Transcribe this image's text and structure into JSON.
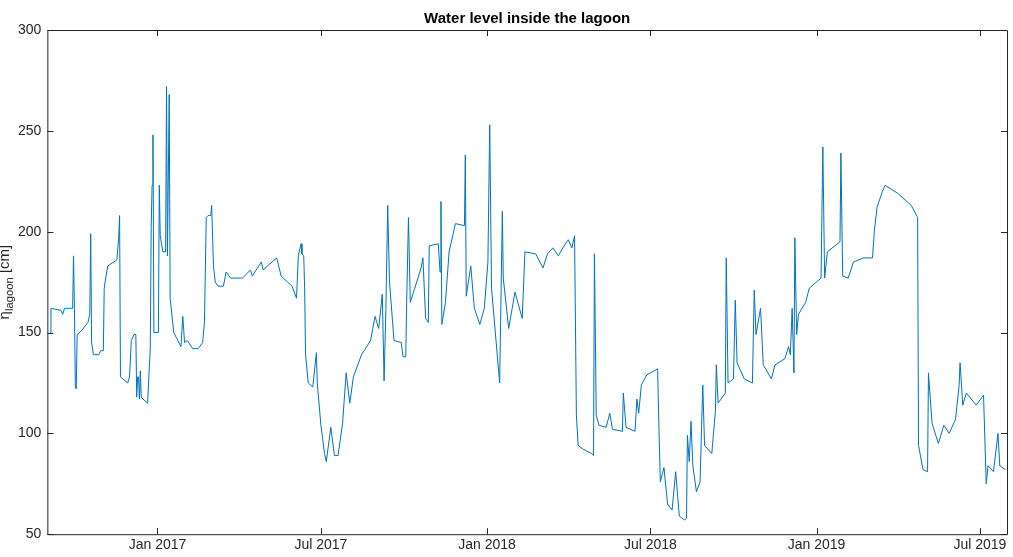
{
  "chart_data": {
    "type": "line",
    "title": "Water level inside the lagoon",
    "ylabel": "η$_{lagoon}$ [cm]",
    "xlim": [
      "2016-09-01",
      "2019-07-31"
    ],
    "xticks": [
      {
        "value": "2017-01-01",
        "label": "Jan 2017"
      },
      {
        "value": "2017-07-01",
        "label": "Jul 2017"
      },
      {
        "value": "2018-01-01",
        "label": "Jan 2018"
      },
      {
        "value": "2018-07-01",
        "label": "Jul 2018"
      },
      {
        "value": "2019-01-01",
        "label": "Jan 2019"
      },
      {
        "value": "2019-07-01",
        "label": "Jul 2019"
      }
    ],
    "ylim": [
      50,
      300
    ],
    "yticks": [
      50,
      100,
      150,
      200,
      250,
      300
    ],
    "grid": false,
    "legend": false,
    "marker": "none",
    "line_style": "solid",
    "x": [
      "2016-09-04",
      "2016-09-05",
      "2016-09-16",
      "2016-09-18",
      "2016-09-20",
      "2016-09-29",
      "2016-09-30",
      "2016-10-01",
      "2016-10-02",
      "2016-10-03",
      "2016-10-04",
      "2016-10-09",
      "2016-10-16",
      "2016-10-18",
      "2016-10-19",
      "2016-10-20",
      "2016-10-22",
      "2016-10-28",
      "2016-10-30",
      "2016-11-02",
      "2016-11-03",
      "2016-11-05",
      "2016-11-07",
      "2016-11-17",
      "2016-11-19",
      "2016-11-20",
      "2016-11-21",
      "2016-11-29",
      "2016-12-01",
      "2016-12-03",
      "2016-12-06",
      "2016-12-08",
      "2016-12-09",
      "2016-12-10",
      "2016-12-11",
      "2016-12-12",
      "2016-12-13",
      "2016-12-14",
      "2016-12-16",
      "2016-12-21",
      "2016-12-24",
      "2016-12-25",
      "2016-12-26",
      "2016-12-27",
      "2016-12-28",
      "2017-01-02",
      "2017-01-03",
      "2017-01-04",
      "2017-01-07",
      "2017-01-10",
      "2017-01-11",
      "2017-01-12",
      "2017-01-14",
      "2017-01-15",
      "2017-01-19",
      "2017-01-27",
      "2017-01-29",
      "2017-01-31",
      "2017-02-03",
      "2017-02-09",
      "2017-02-15",
      "2017-02-20",
      "2017-02-22",
      "2017-02-24",
      "2017-02-26",
      "2017-03-01",
      "2017-03-02",
      "2017-03-04",
      "2017-03-06",
      "2017-03-09",
      "2017-03-15",
      "2017-03-18",
      "2017-03-23",
      "2017-04-05",
      "2017-04-14",
      "2017-04-16",
      "2017-04-26",
      "2017-04-28",
      "2017-05-13",
      "2017-05-18",
      "2017-05-30",
      "2017-06-04",
      "2017-06-06",
      "2017-06-09",
      "2017-06-10",
      "2017-06-12",
      "2017-06-13",
      "2017-06-14",
      "2017-06-17",
      "2017-06-22",
      "2017-06-26",
      "2017-06-27",
      "2017-07-01",
      "2017-07-05",
      "2017-07-07",
      "2017-07-12",
      "2017-07-16",
      "2017-07-20",
      "2017-07-25",
      "2017-07-29",
      "2017-08-02",
      "2017-08-06",
      "2017-08-15",
      "2017-08-25",
      "2017-08-30",
      "2017-09-03",
      "2017-09-07",
      "2017-09-09",
      "2017-09-11",
      "2017-09-13",
      "2017-09-15",
      "2017-09-20",
      "2017-09-28",
      "2017-09-30",
      "2017-10-03",
      "2017-10-04",
      "2017-10-06",
      "2017-10-08",
      "2017-10-13",
      "2017-10-20",
      "2017-10-22",
      "2017-10-25",
      "2017-10-28",
      "2017-10-29",
      "2017-11-08",
      "2017-11-10",
      "2017-11-11",
      "2017-11-12",
      "2017-11-16",
      "2017-11-20",
      "2017-11-27",
      "2017-12-07",
      "2017-12-08",
      "2017-12-09",
      "2017-12-14",
      "2017-12-18",
      "2017-12-24",
      "2017-12-29",
      "2018-01-02",
      "2018-01-04",
      "2018-01-06",
      "2018-01-15",
      "2018-01-18",
      "2018-01-19",
      "2018-01-25",
      "2018-02-01",
      "2018-02-09",
      "2018-02-12",
      "2018-02-24",
      "2018-03-04",
      "2018-03-09",
      "2018-03-15",
      "2018-03-21",
      "2018-03-26",
      "2018-04-01",
      "2018-04-05",
      "2018-04-08",
      "2018-04-10",
      "2018-04-12",
      "2018-04-18",
      "2018-04-27",
      "2018-04-29",
      "2018-04-30",
      "2018-05-02",
      "2018-05-05",
      "2018-05-13",
      "2018-05-17",
      "2018-05-20",
      "2018-05-31",
      "2018-06-01",
      "2018-06-04",
      "2018-06-14",
      "2018-06-16",
      "2018-06-18",
      "2018-06-21",
      "2018-06-27",
      "2018-07-09",
      "2018-07-10",
      "2018-07-12",
      "2018-07-16",
      "2018-07-20",
      "2018-07-25",
      "2018-07-29",
      "2018-08-02",
      "2018-08-08",
      "2018-08-10",
      "2018-08-11",
      "2018-08-13",
      "2018-08-15",
      "2018-08-17",
      "2018-08-21",
      "2018-08-25",
      "2018-08-28",
      "2018-08-30",
      "2018-09-07",
      "2018-09-11",
      "2018-09-12",
      "2018-09-14",
      "2018-09-22",
      "2018-09-23",
      "2018-09-25",
      "2018-10-01",
      "2018-10-03",
      "2018-10-05",
      "2018-10-13",
      "2018-10-22",
      "2018-10-24",
      "2018-10-26",
      "2018-10-31",
      "2018-11-03",
      "2018-11-12",
      "2018-11-16",
      "2018-11-27",
      "2018-12-01",
      "2018-12-03",
      "2018-12-05",
      "2018-12-07",
      "2018-12-08",
      "2018-12-10",
      "2018-12-12",
      "2018-12-20",
      "2018-12-24",
      "2019-01-06",
      "2019-01-08",
      "2019-01-10",
      "2019-01-13",
      "2019-01-27",
      "2019-01-28",
      "2019-01-30",
      "2019-02-05",
      "2019-02-11",
      "2019-02-22",
      "2019-03-04",
      "2019-03-06",
      "2019-03-09",
      "2019-03-15",
      "2019-03-18",
      "2019-04-01",
      "2019-04-16",
      "2019-04-23",
      "2019-04-24",
      "2019-04-29",
      "2019-05-04",
      "2019-05-05",
      "2019-05-09",
      "2019-05-16",
      "2019-05-22",
      "2019-05-28",
      "2019-06-04",
      "2019-06-08",
      "2019-06-09",
      "2019-06-12",
      "2019-06-16",
      "2019-06-27",
      "2019-07-05",
      "2019-07-08",
      "2019-07-10",
      "2019-07-16",
      "2019-07-21",
      "2019-07-23",
      "2019-07-29"
    ],
    "series": [
      {
        "color": "#0072bd",
        "values": [
          150,
          162,
          161,
          159,
          162,
          162,
          188,
          162,
          123,
          122,
          149,
          151,
          155,
          159,
          199,
          145,
          139,
          139,
          141,
          141,
          172,
          178,
          183,
          186,
          197,
          208,
          128,
          125,
          128,
          146,
          149,
          149,
          118,
          128,
          128,
          117,
          131,
          118,
          117,
          115,
          142,
          202,
          223,
          248,
          150,
          150,
          223,
          198,
          190,
          190,
          272,
          188,
          268,
          167,
          150,
          143,
          158,
          145,
          146,
          142,
          142,
          145,
          155,
          207,
          208,
          208,
          213,
          183,
          175,
          173,
          173,
          180,
          177,
          177,
          181,
          178,
          185,
          181,
          187,
          178,
          173,
          167,
          188,
          194,
          189,
          188,
          172,
          139,
          125,
          123,
          140,
          125,
          104,
          90,
          86,
          103,
          89,
          89,
          105,
          130,
          115,
          128,
          139,
          146,
          158,
          152,
          169,
          126,
          162,
          213,
          175,
          146,
          145,
          138,
          138,
          165,
          207,
          165,
          172,
          182,
          187,
          157,
          155,
          193,
          194,
          180,
          215,
          154,
          165,
          190,
          204,
          203,
          238,
          168,
          183,
          162,
          154,
          162,
          185,
          253,
          172,
          125,
          210,
          177,
          152,
          170,
          157,
          190,
          189,
          182,
          189,
          192,
          188,
          192,
          196,
          192,
          198,
          109,
          94,
          92,
          90,
          89,
          189,
          109,
          104,
          103,
          110,
          102,
          101,
          120,
          103,
          101,
          117,
          110,
          124,
          129,
          132,
          111,
          76,
          83,
          65,
          62,
          81,
          59,
          57,
          58,
          99,
          86,
          106,
          84,
          71,
          76,
          124,
          94,
          90,
          111,
          134,
          115,
          120,
          187,
          125,
          127,
          166,
          135,
          127,
          125,
          171,
          149,
          162,
          134,
          127,
          134,
          137,
          143,
          139,
          162,
          130,
          197,
          149,
          159,
          165,
          172,
          177,
          242,
          177,
          190,
          195,
          239,
          178,
          177,
          185,
          187,
          187,
          200,
          212,
          220,
          223,
          219,
          213,
          207,
          94,
          82,
          81,
          130,
          105,
          95,
          104,
          100,
          107,
          124,
          135,
          114,
          120,
          114,
          119,
          75,
          84,
          81,
          100,
          84,
          82
        ]
      }
    ]
  }
}
